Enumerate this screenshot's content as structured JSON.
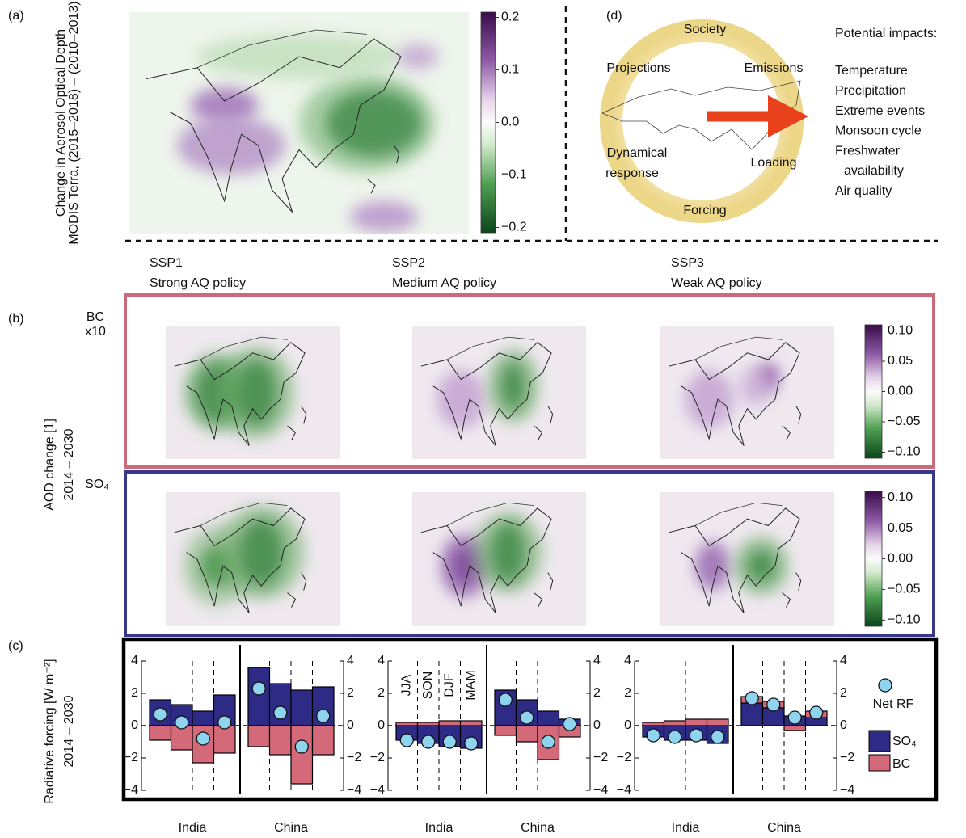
{
  "panel_labels": {
    "a": "(a)",
    "b": "(b)",
    "c": "(c)",
    "d": "(d)"
  },
  "map_a": {
    "ylabel": "Change in Aerosol Optical Depth",
    "ylabel_sub": "MODIS Terra, (2015–2018) – (2010–2013)",
    "colorbar": {
      "lim": [
        -0.21,
        0.21
      ],
      "ticks": [
        0.2,
        0.1,
        {
          "value": 0,
          "label": "0.0"
        },
        {
          "value": -0.1,
          "label": "−0.1"
        },
        {
          "value": -0.2,
          "label": "−0.2"
        }
      ]
    }
  },
  "scenarios": [
    {
      "name": "SSP1",
      "policy": "Strong AQ policy"
    },
    {
      "name": "SSP2",
      "policy": "Medium AQ policy"
    },
    {
      "name": "SSP3",
      "policy": "Weak AQ policy"
    }
  ],
  "map_b": {
    "ylabel": "AOD change [1]",
    "ylabel_period": "2014 – 2030",
    "rows": [
      {
        "label": "BC",
        "sublabel": "x10"
      },
      {
        "label": "SO₄"
      }
    ],
    "colorbar": {
      "lim": [
        -0.11,
        0.11
      ],
      "ticks": [
        {
          "value": 0.1,
          "label": "0.10"
        },
        {
          "value": 0.05,
          "label": "0.05"
        },
        {
          "value": 0,
          "label": "0.00"
        },
        {
          "value": -0.05,
          "label": "−0.05"
        },
        {
          "value": -0.1,
          "label": "−0.10"
        }
      ]
    }
  },
  "diagram_d": {
    "ring_labels": [
      "Society",
      "Emissions",
      "Loading",
      "Forcing",
      "Dynamical",
      "response",
      "Projections"
    ],
    "impacts_title": "Potential impacts:",
    "impacts": [
      "Temperature",
      "Precipitation",
      "Extreme events",
      "Monsoon cycle",
      "Freshwater",
      "availability",
      "Air quality"
    ]
  },
  "chart_data": {
    "type": "bar",
    "ylabel": "Radiative forcing [W m⁻²]",
    "ylabel_period": "2014 – 2030",
    "ylim": [
      -4,
      4
    ],
    "yticks": [
      {
        "value": -4,
        "label": "−4"
      },
      {
        "value": -2,
        "label": "−2"
      },
      0,
      2,
      4
    ],
    "regions": [
      "India",
      "China"
    ],
    "seasons": [
      "JJA",
      "SON",
      "DJF",
      "MAM"
    ],
    "series": [
      {
        "name": "SO₄",
        "color": "#2e2b86",
        "values": [
          1.6,
          1.3,
          0.9,
          1.9,
          3.6,
          2.6,
          2.2,
          2.4,
          -0.9,
          -1.1,
          -1.3,
          -1.4,
          2.2,
          1.6,
          0.9,
          0.4,
          -0.7,
          -0.9,
          -0.9,
          -1.1,
          1.4,
          1.1,
          0.6,
          0.5
        ]
      },
      {
        "name": "BC",
        "color": "#d4697a",
        "values": [
          -0.9,
          -1.5,
          -2.3,
          -1.7,
          -1.3,
          -1.8,
          -3.6,
          -1.8,
          0.2,
          0.2,
          0.3,
          0.3,
          -0.6,
          -1.0,
          -2.1,
          -0.7,
          0.2,
          0.3,
          0.4,
          0.4,
          0.4,
          0.4,
          -0.3,
          0.4
        ]
      },
      {
        "name": "Net RF",
        "color": "#8fd4ee",
        "values": [
          0.7,
          0.2,
          -0.8,
          0.2,
          2.3,
          0.8,
          -1.3,
          0.6,
          -0.9,
          -1.0,
          -1.0,
          -1.1,
          1.6,
          0.5,
          -1.0,
          0.1,
          -0.6,
          -0.7,
          -0.6,
          -0.7,
          1.7,
          1.3,
          0.5,
          0.8
        ]
      }
    ]
  }
}
